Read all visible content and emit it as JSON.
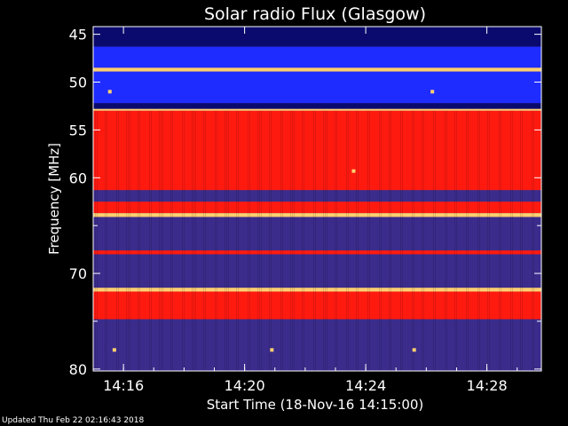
{
  "chart_data": {
    "type": "heatmap",
    "title": "Solar radio Flux (Glasgow)",
    "xlabel": "Start Time (18-Nov-16 14:15:00)",
    "ylabel": "Frequency [MHz]",
    "x_ticks": [
      "14:16",
      "14:20",
      "14:24",
      "14:28"
    ],
    "x_tick_minutes": [
      1,
      5,
      9,
      13
    ],
    "xlim_minutes": [
      0,
      14.8
    ],
    "y_ticks": [
      45,
      50,
      55,
      60,
      65,
      70,
      75,
      80
    ],
    "y_tick_labels": [
      "45",
      "50",
      "55",
      "60",
      "",
      "70",
      "",
      "80"
    ],
    "ylim": [
      44.2,
      80.2
    ],
    "y_inverted": true,
    "colors": {
      "background": "#000000",
      "low": "#0a0a6e",
      "blue": "#1e2cff",
      "mid": "#3b2c8c",
      "red": "#ff1a10",
      "high": "#ffd070"
    },
    "bands": [
      {
        "f": [
          44.2,
          46.3
        ],
        "level": "low"
      },
      {
        "f": [
          46.3,
          48.5
        ],
        "level": "blue"
      },
      {
        "f": [
          48.5,
          48.9
        ],
        "level": "high"
      },
      {
        "f": [
          48.9,
          52.2
        ],
        "level": "blue"
      },
      {
        "f": [
          52.2,
          52.8
        ],
        "level": "low"
      },
      {
        "f": [
          52.8,
          53.0
        ],
        "level": "high"
      },
      {
        "f": [
          53.0,
          61.3
        ],
        "level": "red"
      },
      {
        "f": [
          61.3,
          62.5
        ],
        "level": "mid"
      },
      {
        "f": [
          62.5,
          63.7
        ],
        "level": "red"
      },
      {
        "f": [
          63.7,
          64.1
        ],
        "level": "high"
      },
      {
        "f": [
          64.1,
          67.6
        ],
        "level": "mid"
      },
      {
        "f": [
          67.6,
          68.0
        ],
        "level": "red"
      },
      {
        "f": [
          68.0,
          71.5
        ],
        "level": "mid"
      },
      {
        "f": [
          71.5,
          71.9
        ],
        "level": "high"
      },
      {
        "f": [
          71.9,
          74.8
        ],
        "level": "red"
      },
      {
        "f": [
          74.8,
          80.2
        ],
        "level": "mid"
      }
    ],
    "bursts": [
      {
        "t": 0.7,
        "f": 78.0
      },
      {
        "t": 5.9,
        "f": 78.0
      },
      {
        "t": 10.6,
        "f": 78.0
      },
      {
        "t": 8.6,
        "f": 59.3
      },
      {
        "t": 0.55,
        "f": 51.0
      },
      {
        "t": 11.2,
        "f": 51.0
      }
    ]
  },
  "footer": "Updated Thu Feb 22 02:16:43 2018"
}
